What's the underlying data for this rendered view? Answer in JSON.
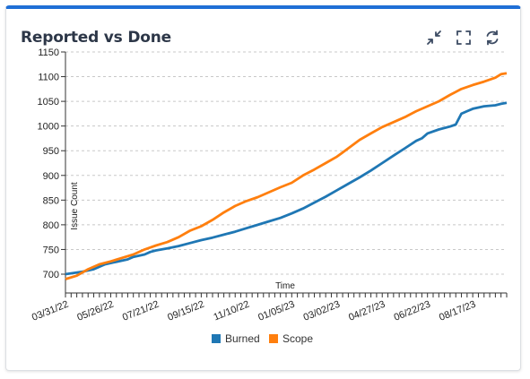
{
  "widget": {
    "title": "Reported vs Done",
    "icons": [
      "shrink-icon",
      "fullscreen-icon",
      "refresh-icon"
    ]
  },
  "colors": {
    "accent": "#1f6fd6",
    "burned": "#1f77b4",
    "scope": "#ff7f0e"
  },
  "chart_data": {
    "type": "line",
    "title": "",
    "xlabel": "Time",
    "ylabel": "Issue Count",
    "ylim": [
      700,
      1150
    ],
    "yticks": [
      700,
      750,
      800,
      850,
      900,
      950,
      1000,
      1050,
      1100,
      1150
    ],
    "xticks": [
      "03/31/22",
      "05/26/22",
      "07/21/22",
      "09/15/22",
      "11/10/22",
      "01/05/23",
      "03/02/23",
      "04/27/23",
      "06/22/23",
      "08/17/23"
    ],
    "xlim_weeks": [
      0,
      78
    ],
    "grid": "horizontal dashed",
    "legend_position": "bottom-center",
    "series": [
      {
        "name": "Burned",
        "color": "#1f77b4",
        "week_offsets": [
          0,
          3,
          5,
          7,
          9,
          11,
          12,
          14,
          15,
          16,
          18,
          20,
          22,
          24,
          26,
          28,
          30,
          32,
          34,
          36,
          38,
          40,
          42,
          44,
          46,
          48,
          50,
          52,
          54,
          56,
          58,
          60,
          62,
          63,
          64,
          66,
          68,
          69,
          70,
          71,
          72,
          74,
          76,
          77,
          78
        ],
        "values": [
          700,
          705,
          710,
          720,
          725,
          730,
          735,
          740,
          745,
          748,
          752,
          757,
          763,
          769,
          774,
          780,
          786,
          793,
          800,
          807,
          814,
          823,
          833,
          845,
          857,
          870,
          883,
          896,
          910,
          925,
          940,
          955,
          970,
          975,
          985,
          993,
          999,
          1003,
          1025,
          1030,
          1035,
          1040,
          1042,
          1045,
          1047
        ]
      },
      {
        "name": "Scope",
        "color": "#ff7f0e",
        "week_offsets": [
          0,
          2,
          4,
          6,
          8,
          10,
          12,
          14,
          16,
          18,
          20,
          22,
          24,
          26,
          28,
          30,
          32,
          34,
          36,
          38,
          40,
          42,
          44,
          46,
          48,
          50,
          52,
          54,
          56,
          58,
          60,
          62,
          64,
          66,
          68,
          70,
          72,
          74,
          76,
          77,
          78
        ],
        "values": [
          690,
          697,
          710,
          720,
          726,
          733,
          740,
          750,
          758,
          765,
          775,
          788,
          797,
          810,
          825,
          838,
          848,
          856,
          866,
          876,
          885,
          900,
          912,
          925,
          938,
          955,
          972,
          985,
          998,
          1008,
          1018,
          1030,
          1040,
          1050,
          1063,
          1075,
          1083,
          1090,
          1098,
          1105,
          1107
        ]
      }
    ]
  }
}
